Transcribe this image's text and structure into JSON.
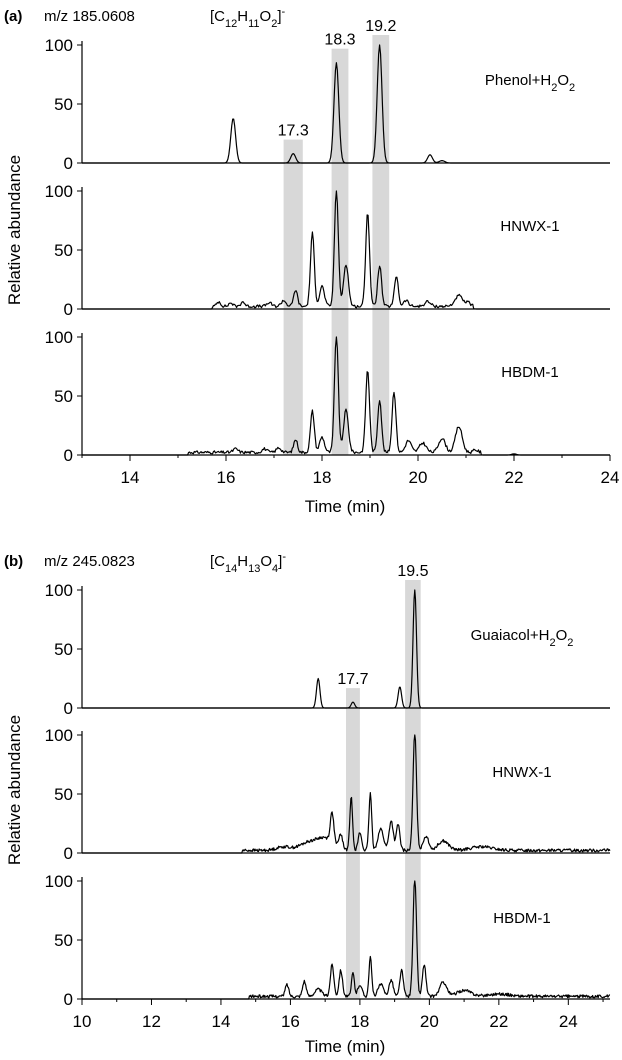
{
  "chart_data": [
    {
      "type": "line",
      "panel_letter": "(a)",
      "mz": "m/z 185.0608",
      "formula": "[C12H11O2]-",
      "xlabel": "Time (min)",
      "ylabel": "Relative abundance",
      "xlim": [
        13,
        24
      ],
      "xticks": [
        14,
        16,
        18,
        20,
        22,
        24
      ],
      "ylim": [
        0,
        100
      ],
      "yticks": [
        0,
        50,
        100
      ],
      "highlights": [
        {
          "label": "17.3",
          "start": 17.2,
          "end": 17.6,
          "label_in_trace": 0
        },
        {
          "label": "18.3",
          "start": 18.2,
          "end": 18.55,
          "label_in_trace": 0
        },
        {
          "label": "19.2",
          "start": 19.05,
          "end": 19.4,
          "label_in_trace": 0
        }
      ],
      "series": [
        {
          "name": "Phenol+H2O2",
          "baseline": 0,
          "peaks": [
            [
              16.15,
              38,
              0.05
            ],
            [
              17.4,
              8,
              0.05
            ],
            [
              18.3,
              85,
              0.05
            ],
            [
              19.2,
              100,
              0.05
            ],
            [
              20.25,
              7,
              0.05
            ],
            [
              20.5,
              2,
              0.06
            ]
          ],
          "noise": []
        },
        {
          "name": "HNWX-1",
          "baseline": 1,
          "peaks": [
            [
              15.85,
              4,
              0.04
            ],
            [
              16.1,
              3,
              0.04
            ],
            [
              16.35,
              4,
              0.04
            ],
            [
              16.9,
              3,
              0.05
            ],
            [
              17.2,
              5,
              0.05
            ],
            [
              17.45,
              14,
              0.04
            ],
            [
              17.8,
              62,
              0.04
            ],
            [
              18.0,
              17,
              0.05
            ],
            [
              18.3,
              100,
              0.04
            ],
            [
              18.5,
              36,
              0.05
            ],
            [
              18.95,
              80,
              0.04
            ],
            [
              19.2,
              35,
              0.04
            ],
            [
              19.55,
              26,
              0.04
            ],
            [
              19.75,
              5,
              0.05
            ],
            [
              20.2,
              4,
              0.06
            ],
            [
              20.85,
              9,
              0.08
            ],
            [
              21.05,
              3,
              0.05
            ]
          ],
          "noise": [
            15.7,
            21.15,
            2.5
          ]
        },
        {
          "name": "HBDM-1",
          "baseline": 1,
          "peaks": [
            [
              16.2,
              3,
              0.05
            ],
            [
              16.8,
              3,
              0.05
            ],
            [
              17.1,
              4,
              0.05
            ],
            [
              17.45,
              11,
              0.04
            ],
            [
              17.8,
              35,
              0.04
            ],
            [
              18.0,
              13,
              0.05
            ],
            [
              18.3,
              100,
              0.04
            ],
            [
              18.5,
              36,
              0.05
            ],
            [
              18.95,
              70,
              0.04
            ],
            [
              19.2,
              45,
              0.04
            ],
            [
              19.5,
              52,
              0.04
            ],
            [
              19.8,
              10,
              0.06
            ],
            [
              20.1,
              8,
              0.07
            ],
            [
              20.5,
              12,
              0.07
            ],
            [
              20.85,
              22,
              0.07
            ],
            [
              21.2,
              2,
              0.05
            ],
            [
              22.0,
              1,
              0.05
            ]
          ],
          "noise": [
            15.2,
            21.3,
            2.5
          ]
        }
      ]
    },
    {
      "type": "line",
      "panel_letter": "(b)",
      "mz": "m/z 245.0823",
      "formula": "[C14H13O4]-",
      "xlabel": "Time (min)",
      "ylabel": "Relative abundance",
      "xlim": [
        10,
        25.2
      ],
      "xticks": [
        10,
        12,
        14,
        16,
        18,
        20,
        22,
        24
      ],
      "ylim": [
        0,
        100
      ],
      "yticks": [
        0,
        50,
        100
      ],
      "highlights": [
        {
          "label": "17.7",
          "start": 17.6,
          "end": 18.0,
          "label_in_trace": 0
        },
        {
          "label": "19.5",
          "start": 19.3,
          "end": 19.75,
          "label_in_trace": 0
        }
      ],
      "series": [
        {
          "name": "Guaiacol+H2O2",
          "baseline": 0,
          "peaks": [
            [
              16.8,
              25,
              0.05
            ],
            [
              17.8,
              5,
              0.05
            ],
            [
              19.15,
              18,
              0.05
            ],
            [
              19.58,
              100,
              0.05
            ]
          ],
          "noise": []
        },
        {
          "name": "HNWX-1",
          "baseline": 1,
          "peaks": [
            [
              15.8,
              3,
              0.2
            ],
            [
              16.5,
              6,
              0.25
            ],
            [
              17.0,
              10,
              0.25
            ],
            [
              17.2,
              25,
              0.05
            ],
            [
              17.45,
              12,
              0.05
            ],
            [
              17.75,
              45,
              0.04
            ],
            [
              18.0,
              15,
              0.05
            ],
            [
              18.3,
              48,
              0.04
            ],
            [
              18.6,
              18,
              0.08
            ],
            [
              18.9,
              25,
              0.06
            ],
            [
              19.1,
              22,
              0.05
            ],
            [
              19.58,
              100,
              0.05
            ],
            [
              19.9,
              12,
              0.08
            ],
            [
              20.4,
              8,
              0.15
            ],
            [
              21.5,
              3,
              0.3
            ]
          ],
          "noise": [
            14.6,
            25.2,
            2.5
          ]
        },
        {
          "name": "HBDM-1",
          "baseline": 1,
          "peaks": [
            [
              15.9,
              10,
              0.05
            ],
            [
              16.4,
              13,
              0.05
            ],
            [
              16.8,
              6,
              0.1
            ],
            [
              17.2,
              27,
              0.05
            ],
            [
              17.45,
              22,
              0.05
            ],
            [
              17.8,
              20,
              0.04
            ],
            [
              18.0,
              10,
              0.06
            ],
            [
              18.3,
              33,
              0.04
            ],
            [
              18.6,
              10,
              0.08
            ],
            [
              18.9,
              14,
              0.06
            ],
            [
              19.2,
              22,
              0.05
            ],
            [
              19.58,
              100,
              0.05
            ],
            [
              19.85,
              27,
              0.05
            ],
            [
              20.4,
              12,
              0.1
            ],
            [
              21.0,
              5,
              0.2
            ],
            [
              22.0,
              2,
              0.3
            ]
          ],
          "noise": [
            14.8,
            25.2,
            2.5
          ]
        }
      ]
    }
  ]
}
